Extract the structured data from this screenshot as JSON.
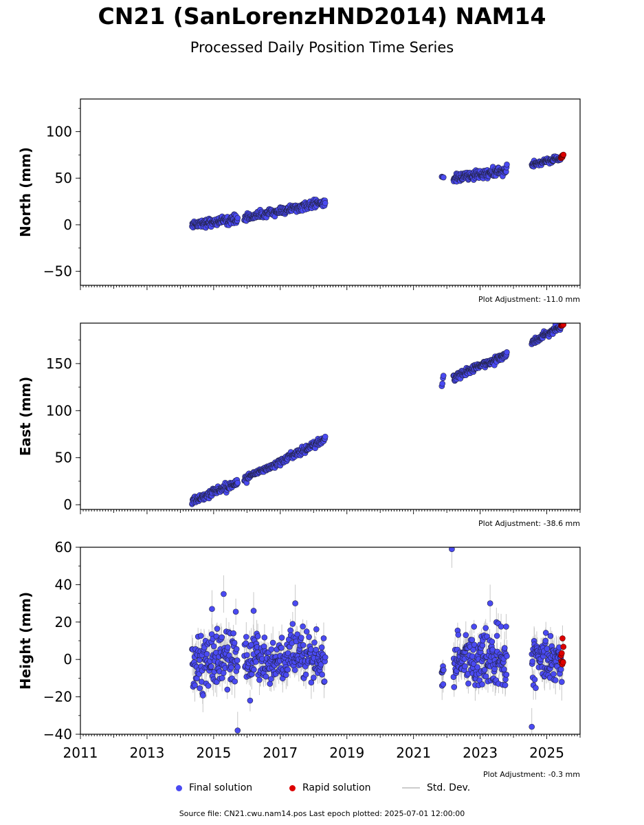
{
  "header": {
    "title": "CN21 (SanLorenzHND2014) NAM14",
    "subtitle": "Processed Daily Position Time Series"
  },
  "colors": {
    "final": "#4a4af2",
    "final_edge": "#222244",
    "rapid": "#dd0000",
    "stddev": "#c8c8c8"
  },
  "chart_data": [
    {
      "type": "scatter",
      "ylabel": "North (mm)",
      "adjustment": "Plot Adjustment: -11.0 mm",
      "xlim": [
        2011,
        2026
      ],
      "ylim": [
        -65,
        135
      ],
      "yticks": [
        -50,
        0,
        50,
        100
      ],
      "ytick_labels": [
        "−50",
        "0",
        "50",
        "100"
      ],
      "series": [
        {
          "name": "Final solution",
          "segments": [
            {
              "t0": 2014.35,
              "t1": 2015.72,
              "y0": 0.5,
              "y1": 6.0,
              "noise": 2.2,
              "n": 130
            },
            {
              "t0": 2015.92,
              "t1": 2018.35,
              "y0": 7.5,
              "y1": 24.0,
              "noise": 2.0,
              "n": 210
            },
            {
              "t0": 2021.85,
              "t1": 2021.9,
              "y0": 51,
              "y1": 51,
              "noise": 0.3,
              "n": 3
            },
            {
              "t0": 2022.2,
              "t1": 2023.8,
              "y0": 50,
              "y1": 58,
              "noise": 2.5,
              "n": 170
            },
            {
              "t0": 2024.55,
              "t1": 2025.43,
              "y0": 64,
              "y1": 72,
              "noise": 1.5,
              "n": 90
            }
          ]
        },
        {
          "name": "Rapid solution",
          "segments": [
            {
              "t0": 2025.43,
              "t1": 2025.5,
              "y0": 72.5,
              "y1": 74.5,
              "noise": 0.8,
              "n": 9
            }
          ]
        }
      ]
    },
    {
      "type": "scatter",
      "ylabel": "East (mm)",
      "adjustment": "Plot Adjustment: -38.6 mm",
      "xlim": [
        2011,
        2026
      ],
      "ylim": [
        -5,
        193
      ],
      "yticks": [
        0,
        50,
        100,
        150
      ],
      "ytick_labels": [
        "0",
        "50",
        "100",
        "150"
      ],
      "series": [
        {
          "name": "Final solution",
          "segments": [
            {
              "t0": 2014.35,
              "t1": 2015.72,
              "y0": 4,
              "y1": 24,
              "noise": 2.2,
              "n": 130
            },
            {
              "t0": 2015.92,
              "t1": 2018.35,
              "y0": 27,
              "y1": 70,
              "noise": 1.8,
              "n": 210
            },
            {
              "t0": 2021.85,
              "t1": 2021.9,
              "y0": 125,
              "y1": 138,
              "noise": 2.0,
              "n": 4
            },
            {
              "t0": 2022.2,
              "t1": 2023.8,
              "y0": 135,
              "y1": 160,
              "noise": 1.8,
              "n": 170
            },
            {
              "t0": 2024.55,
              "t1": 2025.43,
              "y0": 172,
              "y1": 190,
              "noise": 1.5,
              "n": 90
            }
          ]
        },
        {
          "name": "Rapid solution",
          "segments": [
            {
              "t0": 2025.43,
              "t1": 2025.5,
              "y0": 190,
              "y1": 192,
              "noise": 0.8,
              "n": 9
            }
          ]
        }
      ]
    },
    {
      "type": "scatter",
      "ylabel": "Height (mm)",
      "adjustment": "Plot Adjustment: -0.3 mm",
      "xlim": [
        2011,
        2026
      ],
      "ylim": [
        -40,
        60
      ],
      "yticks": [
        -40,
        -20,
        0,
        20,
        40,
        60
      ],
      "ytick_labels": [
        "−40",
        "−20",
        "0",
        "20",
        "40",
        "60"
      ],
      "xticks": [
        2011,
        2013,
        2015,
        2017,
        2019,
        2021,
        2023,
        2025
      ],
      "series": [
        {
          "name": "Final solution",
          "segments": [
            {
              "t0": 2014.35,
              "t1": 2015.72,
              "y0": 0,
              "y1": 0,
              "noise": 7.5,
              "n": 130
            },
            {
              "t0": 2015.92,
              "t1": 2018.35,
              "y0": 0,
              "y1": 0,
              "noise": 7.0,
              "n": 210
            },
            {
              "t0": 2021.85,
              "t1": 2021.9,
              "y0": -8,
              "y1": -8,
              "noise": 4.0,
              "n": 8
            },
            {
              "t0": 2022.2,
              "t1": 2023.8,
              "y0": 0,
              "y1": 0,
              "noise": 7.0,
              "n": 170
            },
            {
              "t0": 2024.55,
              "t1": 2025.43,
              "y0": 0,
              "y1": 0,
              "noise": 6.0,
              "n": 90
            }
          ]
        },
        {
          "name": "Rapid solution",
          "segments": [
            {
              "t0": 2025.43,
              "t1": 2025.5,
              "y0": 1,
              "y1": 1,
              "noise": 4.0,
              "n": 9
            }
          ]
        }
      ],
      "outliers": [
        {
          "t": 2022.15,
          "y": 59
        },
        {
          "t": 2015.72,
          "y": -38
        },
        {
          "t": 2024.55,
          "y": -36
        },
        {
          "t": 2015.3,
          "y": 35
        },
        {
          "t": 2017.45,
          "y": 30
        },
        {
          "t": 2023.3,
          "y": 30
        },
        {
          "t": 2014.95,
          "y": 27
        },
        {
          "t": 2016.2,
          "y": 26
        },
        {
          "t": 2025.45,
          "y": -12
        }
      ]
    }
  ],
  "legend": {
    "final_label": "Final solution",
    "rapid_label": "Rapid solution",
    "std_label": "Std. Dev."
  },
  "footer": {
    "text": "Source file: CN21.cwu.nam14.pos  Last epoch plotted: 2025-07-01 12:00:00"
  }
}
